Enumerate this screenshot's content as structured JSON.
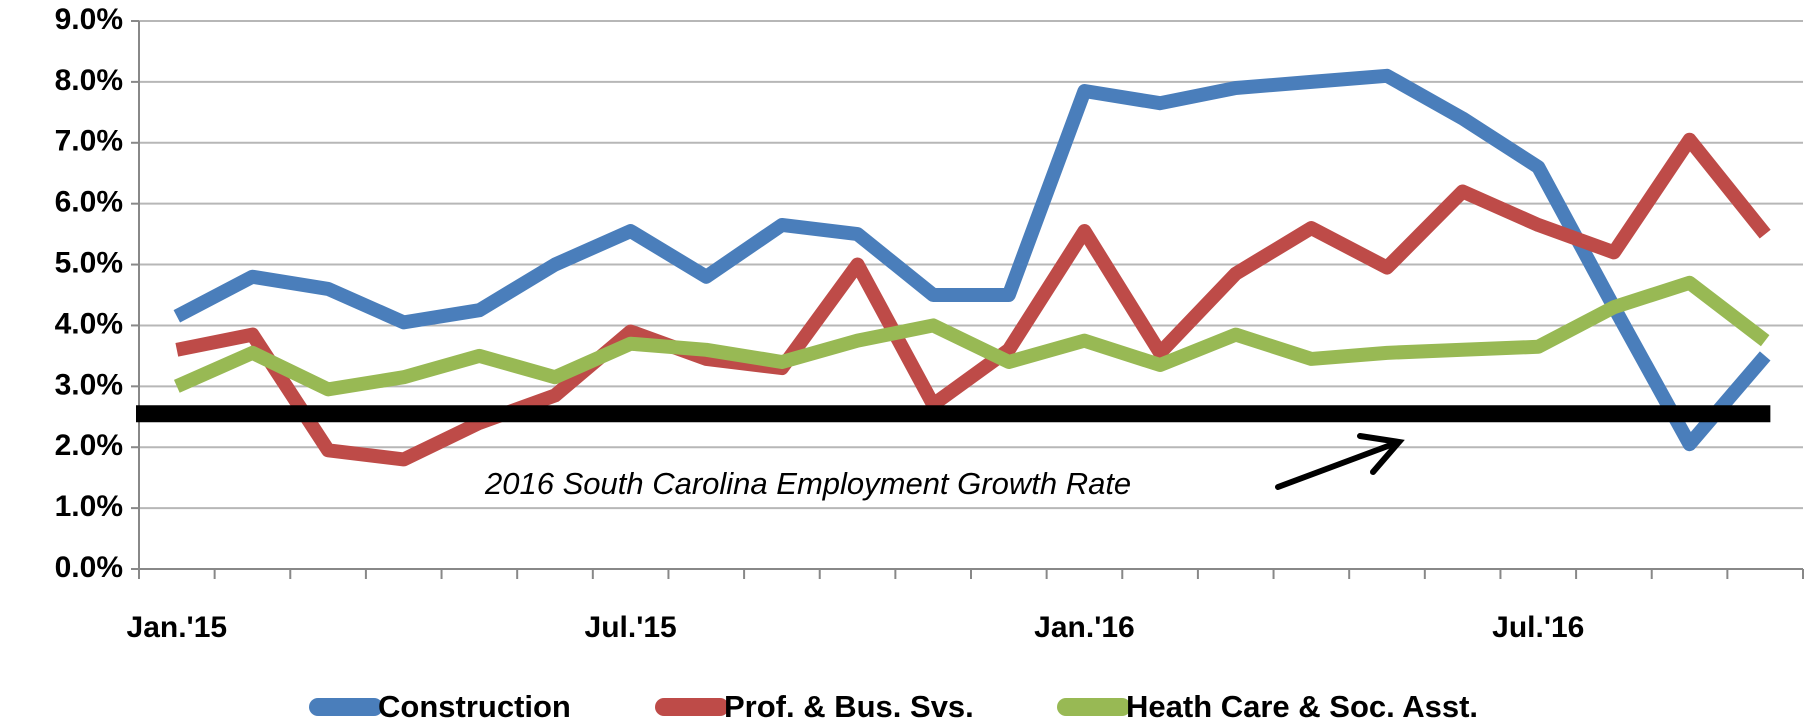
{
  "chart_data": {
    "type": "line",
    "categories": [
      "Jan.'15",
      null,
      null,
      null,
      null,
      null,
      "Jul.'15",
      null,
      null,
      null,
      null,
      null,
      "Jan.'16",
      null,
      null,
      null,
      null,
      null,
      "Jul.'16",
      null,
      null,
      null
    ],
    "series": [
      {
        "name": "Construction",
        "color": "#4a7ebb",
        "values": [
          4.15,
          4.8,
          4.6,
          4.05,
          4.25,
          5.0,
          5.55,
          4.8,
          5.65,
          5.5,
          4.5,
          4.5,
          7.85,
          7.65,
          7.9,
          8.0,
          8.1,
          7.4,
          6.6,
          4.3,
          2.05,
          3.5
        ]
      },
      {
        "name": "Prof. & Bus. Svs.",
        "color": "#be4b48",
        "values": [
          3.6,
          3.85,
          1.95,
          1.8,
          2.4,
          2.85,
          3.9,
          3.45,
          3.3,
          5.0,
          2.7,
          3.6,
          5.55,
          3.55,
          4.85,
          5.6,
          4.95,
          6.2,
          5.65,
          5.2,
          7.05,
          5.5
        ]
      },
      {
        "name": "Heath Care & Soc. Asst.",
        "color": "#98b954",
        "values": [
          3.0,
          3.55,
          2.95,
          3.15,
          3.5,
          3.15,
          3.7,
          3.6,
          3.4,
          3.75,
          4.0,
          3.4,
          3.75,
          3.35,
          3.85,
          3.45,
          3.55,
          3.6,
          3.65,
          4.3,
          4.7,
          3.75
        ]
      }
    ],
    "reference_line": {
      "value": 2.55,
      "color": "#000000",
      "annotation": "2016 South Carolina Employment Growth Rate"
    },
    "ylim": [
      0,
      9
    ],
    "yticks": [
      {
        "value": 0,
        "label": "0.0%"
      },
      {
        "value": 1,
        "label": "1.0%"
      },
      {
        "value": 2,
        "label": "2.0%"
      },
      {
        "value": 3,
        "label": "3.0%"
      },
      {
        "value": 4,
        "label": "4.0%"
      },
      {
        "value": 5,
        "label": "5.0%"
      },
      {
        "value": 6,
        "label": "6.0%"
      },
      {
        "value": 7,
        "label": "7.0%"
      },
      {
        "value": 8,
        "label": "8.0%"
      },
      {
        "value": 9,
        "label": "9.0%"
      }
    ],
    "grid": true,
    "legend": "bottom"
  }
}
